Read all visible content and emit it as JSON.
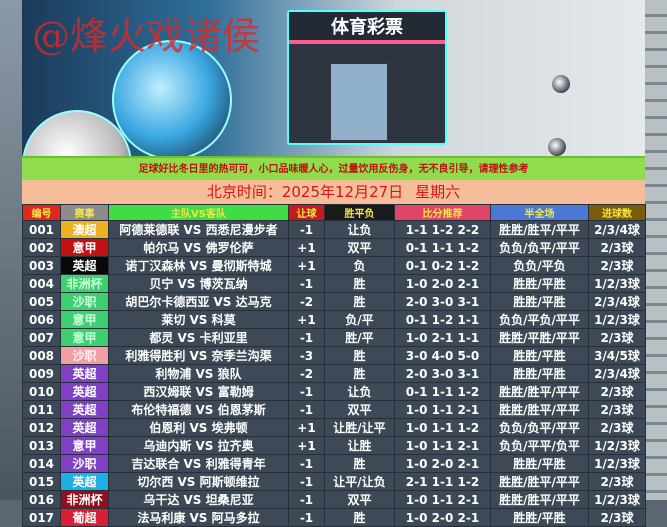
{
  "banner": {
    "watermark": "@烽火戏诸侯",
    "store_sign": "体育彩票"
  },
  "notice": "足球好比冬日里的热可可，小口品味暖人心，过量饮用反伤身，无不良引导，请理性参考",
  "date": {
    "label": "北京时间：2025年12月27日",
    "weekday": "星期六"
  },
  "headers": [
    "编号",
    "赛事",
    "主队VS客队",
    "让球",
    "胜平负",
    "比分推荐",
    "半全场",
    "进球数"
  ],
  "header_colors": [
    "#e2281a",
    "#8c8c8c",
    "#3fdc46",
    "#c41c1c",
    "#1a1a1a",
    "#e04466",
    "#4a78d4",
    "#7a5c08"
  ],
  "rows": [
    {
      "no": "001",
      "league": "澳超",
      "league_color": "#eeb020",
      "match": "阿德莱德联 VS 西悉尼漫步者",
      "handicap": "-1",
      "result": "让负",
      "scores": "1-1 1-2 2-2",
      "halffull": "胜胜/胜平/平平",
      "goals": "2/3/4球"
    },
    {
      "no": "002",
      "league": "意甲",
      "league_color": "#c01212",
      "match": "帕尔马 VS 佛罗伦萨",
      "handicap": "+1",
      "result": "双平",
      "scores": "0-1 1-1 1-2",
      "halffull": "负负/负平/平平",
      "goals": "2/3球"
    },
    {
      "no": "003",
      "league": "英超",
      "league_color": "#080808",
      "match": "诺丁汉森林 VS 曼彻斯特城",
      "handicap": "+1",
      "result": "负",
      "scores": "0-1 0-2 1-2",
      "halffull": "负负/平负",
      "goals": "2/3球"
    },
    {
      "no": "004",
      "league": "非洲杯",
      "league_color": "#3ed070",
      "match": "贝宁 VS 博茨瓦纳",
      "handicap": "-1",
      "result": "胜",
      "scores": "1-0 2-0 2-1",
      "halffull": "胜胜/平胜",
      "goals": "1/2/3球"
    },
    {
      "no": "005",
      "league": "沙职",
      "league_color": "#3ed070",
      "match": "胡巴尔卡德西亚 VS 达马克",
      "handicap": "-2",
      "result": "胜",
      "scores": "2-0 3-0 3-1",
      "halffull": "胜胜/平胜",
      "goals": "2/3/4球"
    },
    {
      "no": "006",
      "league": "意甲",
      "league_color": "#3ed070",
      "match": "莱切 VS 科莫",
      "handicap": "+1",
      "result": "负/平",
      "scores": "0-1 1-2 1-1",
      "halffull": "负负/平负/平平",
      "goals": "1/2/3球"
    },
    {
      "no": "007",
      "league": "意甲",
      "league_color": "#3ed070",
      "match": "都灵 VS 卡利亚里",
      "handicap": "-1",
      "result": "胜/平",
      "scores": "1-0 2-1 1-1",
      "halffull": "胜胜/平胜/平平",
      "goals": "2/3球"
    },
    {
      "no": "008",
      "league": "沙职",
      "league_color": "#f0a0a4",
      "match": "利雅得胜利 VS 奈季兰沟渠",
      "handicap": "-3",
      "result": "胜",
      "scores": "3-0 4-0 5-0",
      "halffull": "胜胜/平胜",
      "goals": "3/4/5球"
    },
    {
      "no": "009",
      "league": "英超",
      "league_color": "#8040c4",
      "match": "利物浦 VS 狼队",
      "handicap": "-2",
      "result": "胜",
      "scores": "2-0 3-0 3-1",
      "halffull": "胜胜/平胜",
      "goals": "2/3/4球"
    },
    {
      "no": "010",
      "league": "英超",
      "league_color": "#8040c4",
      "match": "西汉姆联 VS 富勒姆",
      "handicap": "-1",
      "result": "让负",
      "scores": "0-1 1-1 1-2",
      "halffull": "胜胜/胜平/平平",
      "goals": "2/3球"
    },
    {
      "no": "011",
      "league": "英超",
      "league_color": "#8040c4",
      "match": "布伦特福德 VS 伯恩茅斯",
      "handicap": "-1",
      "result": "双平",
      "scores": "1-0 1-1 2-1",
      "halffull": "胜胜/胜平/平平",
      "goals": "2/3球"
    },
    {
      "no": "012",
      "league": "英超",
      "league_color": "#8040c4",
      "match": "伯恩利 VS 埃弗顿",
      "handicap": "+1",
      "result": "让胜/让平",
      "scores": "1-0 1-1 1-2",
      "halffull": "负负/负平/平平",
      "goals": "2/3球"
    },
    {
      "no": "013",
      "league": "意甲",
      "league_color": "#8040c4",
      "match": "乌迪内斯 VS 拉齐奥",
      "handicap": "+1",
      "result": "让胜",
      "scores": "1-0 1-1 2-1",
      "halffull": "负负/平平/负平",
      "goals": "1/2/3球"
    },
    {
      "no": "014",
      "league": "沙职",
      "league_color": "#8040c4",
      "match": "吉达联合 VS 利雅得青年",
      "handicap": "-1",
      "result": "胜",
      "scores": "1-0 2-0 2-1",
      "halffull": "胜胜/平胜",
      "goals": "1/2/3球"
    },
    {
      "no": "015",
      "league": "英超",
      "league_color": "#1eb0e4",
      "match": "切尔西 VS 阿斯顿维拉",
      "handicap": "-1",
      "result": "让平/让负",
      "scores": "2-1 1-1 1-2",
      "halffull": "胜胜/胜平/平平",
      "goals": "2/3球"
    },
    {
      "no": "016",
      "league": "非洲杯",
      "league_color": "#92101e",
      "match": "乌干达 VS 坦桑尼亚",
      "handicap": "-1",
      "result": "双平",
      "scores": "1-0 1-1 2-1",
      "halffull": "胜胜/胜平/平平",
      "goals": "1/2/3球"
    },
    {
      "no": "017",
      "league": "葡超",
      "league_color": "#d42032",
      "match": "法马利康 VS 阿马多拉",
      "handicap": "-1",
      "result": "胜",
      "scores": "1-0 2-0 2-1",
      "halffull": "胜胜/平胜",
      "goals": "2/3球"
    }
  ]
}
